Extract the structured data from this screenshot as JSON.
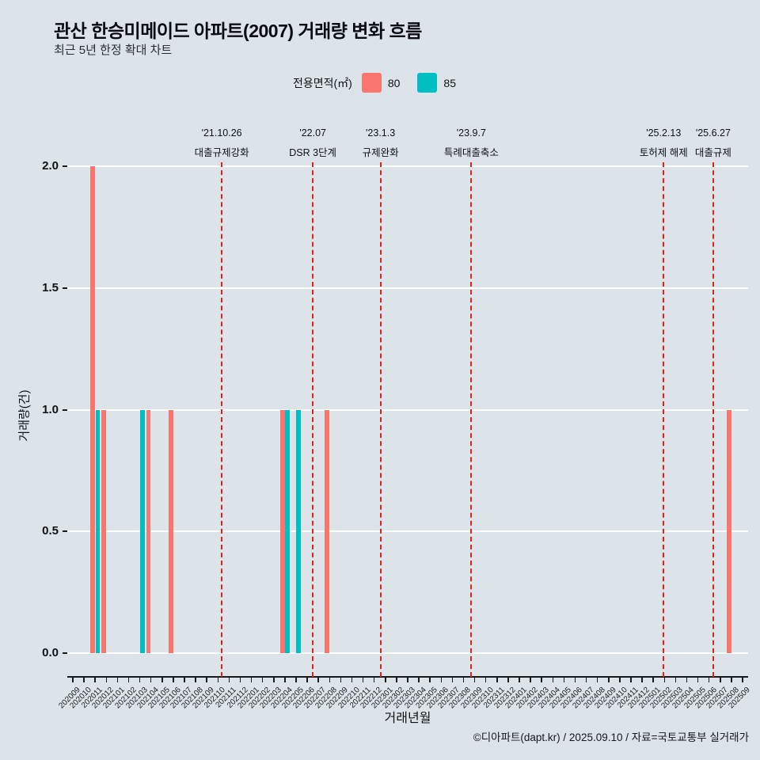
{
  "title": "관산 한승미메이드 아파트(2007) 거래량 변화 흐름",
  "subtitle": "최근 5년 한정 확대 차트",
  "legend": {
    "title": "전용면적(㎡)",
    "items": [
      {
        "label": "80",
        "color": "#F8766D"
      },
      {
        "label": "85",
        "color": "#00BFC4"
      }
    ]
  },
  "footer": "©디아파트(dapt.kr) / 2025.09.10 / 자료=국토교통부 실거래가",
  "colors": {
    "background": "#dce4e9",
    "gridline": "#ffffff",
    "annotation_line": "#e3211a",
    "series_80": "#F8766D",
    "series_85": "#00BFC4"
  },
  "chart_data": {
    "type": "bar",
    "title": "관산 한승미메이드 아파트(2007) 거래량 변화 흐름",
    "subtitle": "최근 5년 한정 확대 차트",
    "xlabel": "거래년월",
    "ylabel": "거래량(건)",
    "ylim": [
      0,
      2
    ],
    "yticks": [
      0,
      0.5,
      1,
      1.5,
      2
    ],
    "grid": true,
    "legend_position": "top",
    "categories": [
      "202009",
      "202010",
      "202011",
      "202012",
      "202101",
      "202102",
      "202103",
      "202104",
      "202105",
      "202106",
      "202107",
      "202108",
      "202109",
      "202110",
      "202111",
      "202112",
      "202201",
      "202202",
      "202203",
      "202204",
      "202205",
      "202206",
      "202207",
      "202208",
      "202209",
      "202210",
      "202211",
      "202212",
      "202301",
      "202302",
      "202303",
      "202304",
      "202305",
      "202306",
      "202307",
      "202308",
      "202309",
      "202310",
      "202311",
      "202312",
      "202401",
      "202402",
      "202403",
      "202404",
      "202405",
      "202406",
      "202407",
      "202408",
      "202409",
      "202410",
      "202411",
      "202412",
      "202501",
      "202502",
      "202503",
      "202504",
      "202505",
      "202506",
      "202507",
      "202508",
      "202509"
    ],
    "series": [
      {
        "name": "80",
        "color": "#F8766D",
        "points": {
          "202011": 2,
          "202012": 1,
          "202104": 1,
          "202106": 1,
          "202204": 1,
          "202208": 1,
          "202508": 1
        }
      },
      {
        "name": "85",
        "color": "#00BFC4",
        "points": {
          "202011": 1,
          "202103": 1,
          "202204": 1,
          "202205": 1
        }
      }
    ],
    "annotations": [
      {
        "date": "'21.10.26",
        "label": "대출규제강화",
        "pos": 13.34
      },
      {
        "date": "'22.07",
        "label": "DSR 3단계",
        "pos": 21.5
      },
      {
        "date": "'23.1.3",
        "label": "규제완화",
        "pos": 27.56
      },
      {
        "date": "'23.9.7",
        "label": "특례대출축소",
        "pos": 35.7
      },
      {
        "date": "'25.2.13",
        "label": "토허제 해제",
        "pos": 52.93
      },
      {
        "date": "'25.6.27",
        "label": "대출규제",
        "pos": 57.37
      }
    ]
  }
}
